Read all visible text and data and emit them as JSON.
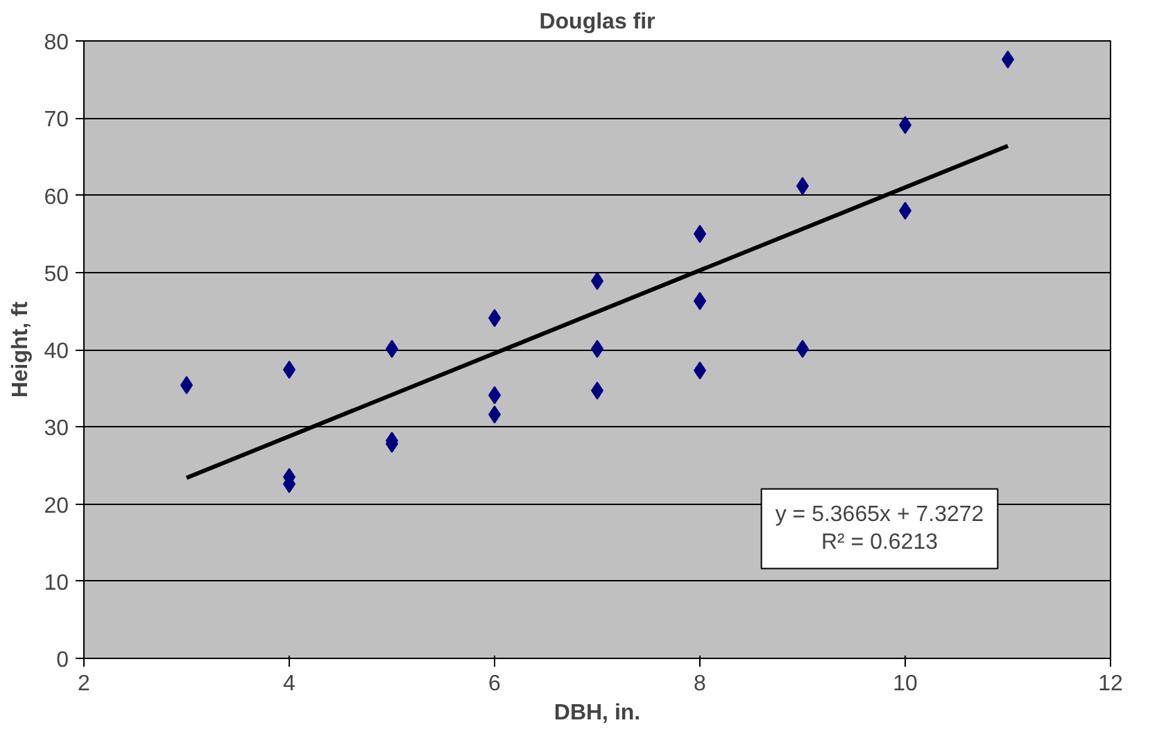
{
  "chart_data": {
    "type": "scatter",
    "title": "Douglas fir",
    "xlabel": "DBH, in.",
    "ylabel": "Height, ft",
    "xlim": [
      2,
      12
    ],
    "xticks": [
      2,
      4,
      6,
      8,
      10,
      12
    ],
    "ylim": [
      0,
      80
    ],
    "yticks": [
      0,
      10,
      20,
      30,
      40,
      50,
      60,
      70,
      80
    ],
    "grid": "y",
    "series": [
      {
        "color": "#000080",
        "marker": "diamond",
        "x": [
          3,
          4,
          4,
          4,
          5,
          5,
          5,
          6,
          6,
          6,
          7,
          7,
          7,
          8,
          8,
          8,
          9,
          9,
          10,
          10,
          11
        ],
        "values": [
          35.4,
          37.4,
          23.5,
          22.6,
          40.1,
          28.2,
          27.8,
          44.1,
          34.1,
          31.6,
          48.9,
          40.1,
          34.7,
          55,
          46.3,
          37.3,
          61.2,
          40.1,
          69.1,
          58,
          77.6
        ]
      },
      {
        "type": "line",
        "color": "#000000",
        "marker": "none",
        "x": [
          3,
          11
        ],
        "values": [
          23.4,
          66.4
        ]
      }
    ],
    "annotations": [
      "y = 5.3665x + 7.3272",
      "R² = 0.6213"
    ]
  }
}
